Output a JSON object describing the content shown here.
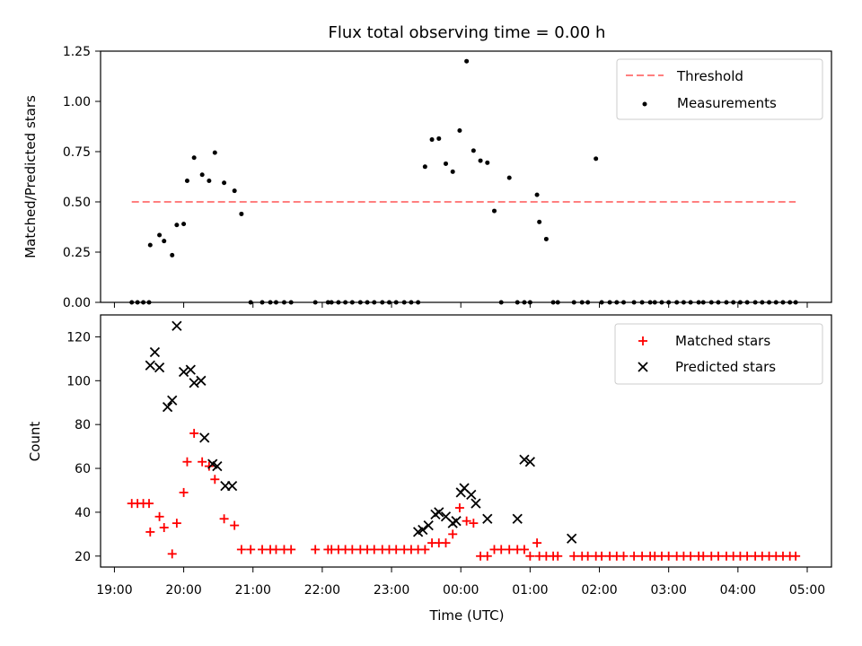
{
  "chart_data": [
    {
      "type": "scatter",
      "title": "Flux total observing time = 0.00 h",
      "xlabel": "",
      "ylabel": "Matched/Predicted stars",
      "ylim": [
        0,
        1.25
      ],
      "yticks": [
        "0.00",
        "0.25",
        "0.50",
        "0.75",
        "1.00",
        "1.25"
      ],
      "grid": false,
      "legend_position": "top-right",
      "threshold": {
        "name": "Threshold",
        "value": 0.5,
        "color": "#ff7f7f",
        "x_start": "19:15",
        "x_end": "04:50"
      },
      "series": [
        {
          "name": "Measurements",
          "color": "#000000",
          "marker": "dot",
          "x": [
            "19:15",
            "19:20",
            "19:25",
            "19:30",
            "19:31",
            "19:39",
            "19:43",
            "19:50",
            "19:54",
            "20:00",
            "20:03",
            "20:09",
            "20:16",
            "20:22",
            "20:27",
            "20:35",
            "20:44",
            "20:50",
            "20:58",
            "21:08",
            "21:15",
            "21:20",
            "21:27",
            "21:33",
            "21:54",
            "22:05",
            "22:08",
            "22:14",
            "22:20",
            "22:26",
            "22:33",
            "22:39",
            "22:45",
            "22:52",
            "22:58",
            "23:04",
            "23:11",
            "23:17",
            "23:23",
            "23:29",
            "23:35",
            "23:41",
            "23:47",
            "23:53",
            "23:59",
            "00:05",
            "00:11",
            "00:17",
            "00:23",
            "00:29",
            "00:35",
            "00:42",
            "00:49",
            "00:55",
            "01:00",
            "01:06",
            "01:08",
            "01:14",
            "01:20",
            "01:24",
            "01:38",
            "01:45",
            "01:50",
            "01:57",
            "02:02",
            "02:09",
            "02:15",
            "02:21",
            "02:30",
            "02:37",
            "02:44",
            "02:48",
            "02:54",
            "03:00",
            "03:07",
            "03:13",
            "03:19",
            "03:26",
            "03:30",
            "03:37",
            "03:43",
            "03:50",
            "03:56",
            "04:02",
            "04:08",
            "04:15",
            "04:21",
            "04:27",
            "04:33",
            "04:39",
            "04:45",
            "04:50"
          ],
          "y": [
            0.0,
            0.0,
            0.0,
            0.0,
            0.285,
            0.335,
            0.305,
            0.235,
            0.385,
            0.39,
            0.605,
            0.72,
            0.635,
            0.605,
            0.745,
            0.595,
            0.555,
            0.44,
            0.0,
            0.0,
            0.0,
            0.0,
            0.0,
            0.0,
            0.0,
            0.0,
            0.0,
            0.0,
            0.0,
            0.0,
            0.0,
            0.0,
            0.0,
            0.0,
            0.0,
            0.0,
            0.0,
            0.0,
            0.0,
            0.675,
            0.81,
            0.815,
            0.69,
            0.65,
            0.855,
            1.2,
            0.755,
            0.705,
            0.695,
            0.455,
            0.0,
            0.62,
            0.0,
            0.0,
            0.0,
            0.535,
            0.4,
            0.315,
            0.0,
            0.0,
            0.0,
            0.0,
            0.0,
            0.715,
            0.0,
            0.0,
            0.0,
            0.0,
            0.0,
            0.0,
            0.0,
            0.0,
            0.0,
            0.0,
            0.0,
            0.0,
            0.0,
            0.0,
            0.0,
            0.0,
            0.0,
            0.0,
            0.0,
            0.0,
            0.0,
            0.0,
            0.0,
            0.0,
            0.0,
            0.0,
            0.0,
            0.0
          ]
        }
      ]
    },
    {
      "type": "scatter",
      "title": "",
      "xlabel": "Time (UTC)",
      "ylabel": "Count",
      "ylim": [
        15,
        130
      ],
      "yticks": [
        "20",
        "40",
        "60",
        "80",
        "100",
        "120"
      ],
      "xticks": [
        "19:00",
        "20:00",
        "21:00",
        "22:00",
        "23:00",
        "00:00",
        "01:00",
        "02:00",
        "03:00",
        "04:00",
        "05:00"
      ],
      "grid": false,
      "legend_position": "top-right",
      "series": [
        {
          "name": "Matched stars",
          "color": "#ff0000",
          "marker": "plus",
          "x": [
            "19:15",
            "19:20",
            "19:25",
            "19:30",
            "19:31",
            "19:39",
            "19:43",
            "19:50",
            "19:54",
            "20:00",
            "20:03",
            "20:09",
            "20:16",
            "20:22",
            "20:27",
            "20:35",
            "20:44",
            "20:50",
            "20:58",
            "21:08",
            "21:15",
            "21:20",
            "21:27",
            "21:33",
            "21:54",
            "22:05",
            "22:08",
            "22:14",
            "22:20",
            "22:26",
            "22:33",
            "22:39",
            "22:45",
            "22:52",
            "22:58",
            "23:04",
            "23:11",
            "23:17",
            "23:23",
            "23:29",
            "23:35",
            "23:41",
            "23:47",
            "23:53",
            "23:59",
            "00:05",
            "00:11",
            "00:17",
            "00:23",
            "00:29",
            "00:35",
            "00:42",
            "00:49",
            "00:55",
            "01:00",
            "01:06",
            "01:08",
            "01:14",
            "01:20",
            "01:24",
            "01:38",
            "01:45",
            "01:50",
            "01:57",
            "02:02",
            "02:09",
            "02:15",
            "02:21",
            "02:30",
            "02:37",
            "02:44",
            "02:48",
            "02:54",
            "03:00",
            "03:07",
            "03:13",
            "03:19",
            "03:26",
            "03:30",
            "03:37",
            "03:43",
            "03:50",
            "03:56",
            "04:02",
            "04:08",
            "04:15",
            "04:21",
            "04:27",
            "04:33",
            "04:39",
            "04:45",
            "04:50"
          ],
          "y": [
            44,
            44,
            44,
            44,
            31,
            38,
            33,
            21,
            35,
            49,
            63,
            76,
            63,
            61,
            55,
            37,
            34,
            23,
            23,
            23,
            23,
            23,
            23,
            23,
            23,
            23,
            23,
            23,
            23,
            23,
            23,
            23,
            23,
            23,
            23,
            23,
            23,
            23,
            23,
            23,
            26,
            26,
            26,
            30,
            42,
            36,
            35,
            20,
            20,
            23,
            23,
            23,
            23,
            23,
            20,
            26,
            20,
            20,
            20,
            20,
            20,
            20,
            20,
            20,
            20,
            20,
            20,
            20,
            20,
            20,
            20,
            20,
            20,
            20,
            20,
            20,
            20,
            20,
            20,
            20,
            20,
            20,
            20,
            20,
            20,
            20,
            20,
            20,
            20,
            20,
            20,
            20
          ]
        },
        {
          "name": "Predicted stars",
          "color": "#000000",
          "marker": "x",
          "x": [
            "19:31",
            "19:35",
            "19:39",
            "19:46",
            "19:50",
            "19:54",
            "20:00",
            "20:06",
            "20:09",
            "20:15",
            "20:18",
            "20:25",
            "20:29",
            "20:36",
            "20:42",
            "23:23",
            "23:27",
            "23:32",
            "23:38",
            "23:41",
            "23:47",
            "23:53",
            "23:56",
            "00:00",
            "00:03",
            "00:09",
            "00:13",
            "00:23",
            "00:49",
            "00:55",
            "01:00",
            "01:36"
          ],
          "y": [
            107,
            113,
            106,
            88,
            91,
            125,
            104,
            105,
            99,
            100,
            74,
            62,
            61,
            52,
            52,
            31,
            32,
            34,
            39,
            40,
            38,
            35,
            36,
            49,
            51,
            48,
            44,
            37,
            37,
            64,
            63,
            28
          ]
        }
      ]
    }
  ]
}
